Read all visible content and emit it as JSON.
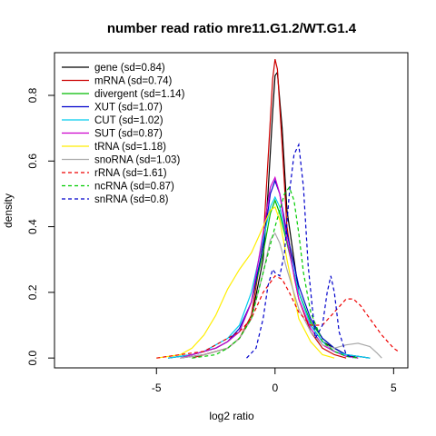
{
  "chart_data": {
    "type": "line",
    "title": "number read ratio mre11.G1.2/WT.G1.4",
    "xlabel": "log2 ratio",
    "ylabel": "density",
    "xlim": [
      -9.3,
      5.6
    ],
    "ylim": [
      -0.03,
      0.93
    ],
    "x_ticks": [
      -5,
      0,
      5
    ],
    "x_tick_labels": [
      "-5",
      "0",
      "5"
    ],
    "y_ticks": [
      0.0,
      0.2,
      0.4,
      0.6,
      0.8
    ],
    "y_tick_labels": [
      "0.0",
      "0.2",
      "0.4",
      "0.6",
      "0.8"
    ],
    "grid": false,
    "legend_position": "top-left",
    "series": [
      {
        "name": "gene (sd=0.84)",
        "color": "#000000",
        "dash": "solid",
        "x": [
          -4.0,
          -3.0,
          -2.5,
          -2.0,
          -1.5,
          -1.0,
          -0.5,
          -0.3,
          -0.1,
          0.0,
          0.1,
          0.3,
          0.5,
          0.8,
          1.0,
          1.5,
          2.0,
          2.5,
          3.0,
          3.5
        ],
        "y": [
          0.0,
          0.01,
          0.02,
          0.03,
          0.06,
          0.12,
          0.3,
          0.5,
          0.75,
          0.86,
          0.87,
          0.7,
          0.45,
          0.3,
          0.2,
          0.1,
          0.05,
          0.03,
          0.01,
          0.0
        ]
      },
      {
        "name": "mRNA (sd=0.74)",
        "color": "#cc0000",
        "dash": "solid",
        "x": [
          -3.5,
          -3.0,
          -2.5,
          -2.0,
          -1.5,
          -1.0,
          -0.5,
          -0.3,
          -0.1,
          0.0,
          0.1,
          0.3,
          0.5,
          0.8,
          1.0,
          1.5,
          2.0,
          2.5,
          3.0
        ],
        "y": [
          0.0,
          0.01,
          0.02,
          0.03,
          0.06,
          0.13,
          0.35,
          0.6,
          0.85,
          0.91,
          0.88,
          0.65,
          0.4,
          0.25,
          0.18,
          0.08,
          0.03,
          0.01,
          0.0
        ]
      },
      {
        "name": "divergent (sd=1.14)",
        "color": "#00bb00",
        "dash": "solid",
        "x": [
          -4.5,
          -3.5,
          -3.0,
          -2.5,
          -2.0,
          -1.5,
          -1.0,
          -0.5,
          -0.2,
          0.0,
          0.2,
          0.5,
          1.0,
          1.5,
          2.0,
          2.5,
          3.0,
          3.5,
          4.0
        ],
        "y": [
          0.0,
          0.01,
          0.02,
          0.03,
          0.05,
          0.08,
          0.17,
          0.32,
          0.44,
          0.48,
          0.44,
          0.35,
          0.2,
          0.11,
          0.06,
          0.03,
          0.01,
          0.005,
          0.0
        ]
      },
      {
        "name": "XUT (sd=1.07)",
        "color": "#0000cc",
        "dash": "solid",
        "x": [
          -4.5,
          -3.5,
          -3.0,
          -2.5,
          -2.0,
          -1.5,
          -1.0,
          -0.5,
          -0.2,
          0.0,
          0.2,
          0.5,
          1.0,
          1.5,
          2.0,
          2.5,
          3.0,
          3.5,
          4.0
        ],
        "y": [
          0.0,
          0.01,
          0.02,
          0.03,
          0.05,
          0.09,
          0.17,
          0.34,
          0.5,
          0.54,
          0.5,
          0.38,
          0.22,
          0.12,
          0.06,
          0.03,
          0.01,
          0.005,
          0.0
        ]
      },
      {
        "name": "CUT (sd=1.02)",
        "color": "#00ccee",
        "dash": "solid",
        "x": [
          -4.5,
          -3.5,
          -3.0,
          -2.5,
          -2.0,
          -1.5,
          -1.0,
          -0.5,
          -0.2,
          0.0,
          0.2,
          0.5,
          1.0,
          1.5,
          2.0,
          2.5,
          3.0,
          3.5,
          4.0
        ],
        "y": [
          0.0,
          0.01,
          0.02,
          0.04,
          0.06,
          0.1,
          0.2,
          0.36,
          0.46,
          0.49,
          0.46,
          0.36,
          0.2,
          0.1,
          0.05,
          0.02,
          0.01,
          0.005,
          0.0
        ]
      },
      {
        "name": "SUT (sd=0.87)",
        "color": "#cc00cc",
        "dash": "solid",
        "x": [
          -4.0,
          -3.5,
          -3.0,
          -2.5,
          -2.0,
          -1.5,
          -1.0,
          -0.5,
          -0.2,
          0.0,
          0.2,
          0.5,
          1.0,
          1.5,
          2.0,
          2.5,
          3.0,
          3.5
        ],
        "y": [
          0.0,
          0.01,
          0.02,
          0.03,
          0.05,
          0.08,
          0.17,
          0.38,
          0.52,
          0.55,
          0.5,
          0.36,
          0.18,
          0.09,
          0.04,
          0.02,
          0.005,
          0.0
        ]
      },
      {
        "name": "tRNA (sd=1.18)",
        "color": "#ffee00",
        "dash": "solid",
        "x": [
          -5.0,
          -4.0,
          -3.5,
          -3.0,
          -2.5,
          -2.0,
          -1.5,
          -1.0,
          -0.5,
          -0.2,
          0.0,
          0.2,
          0.5,
          1.0,
          1.5,
          2.0,
          2.5
        ],
        "y": [
          0.0,
          0.01,
          0.03,
          0.07,
          0.13,
          0.21,
          0.27,
          0.32,
          0.4,
          0.45,
          0.46,
          0.42,
          0.3,
          0.12,
          0.05,
          0.01,
          0.0
        ]
      },
      {
        "name": "snoRNA (sd=1.03)",
        "color": "#aaaaaa",
        "dash": "solid",
        "x": [
          -4.0,
          -3.0,
          -2.0,
          -1.5,
          -1.0,
          -0.5,
          -0.2,
          0.0,
          0.2,
          0.5,
          1.0,
          1.5,
          2.0,
          2.5,
          3.0,
          3.5,
          4.0,
          4.3,
          4.5
        ],
        "y": [
          0.0,
          0.01,
          0.03,
          0.06,
          0.12,
          0.26,
          0.36,
          0.38,
          0.35,
          0.27,
          0.15,
          0.08,
          0.04,
          0.03,
          0.04,
          0.045,
          0.035,
          0.015,
          0.0
        ]
      },
      {
        "name": "rRNA (sd=1.61)",
        "color": "#ee0000",
        "dash": "dashed",
        "x": [
          -5.0,
          -4.0,
          -3.0,
          -2.5,
          -2.0,
          -1.5,
          -1.0,
          -0.5,
          0.0,
          0.3,
          0.6,
          1.0,
          1.5,
          2.0,
          2.5,
          3.0,
          3.3,
          3.6,
          4.0,
          4.5,
          5.0,
          5.2
        ],
        "y": [
          0.0,
          0.01,
          0.02,
          0.04,
          0.06,
          0.08,
          0.12,
          0.2,
          0.25,
          0.24,
          0.2,
          0.14,
          0.1,
          0.1,
          0.14,
          0.18,
          0.18,
          0.16,
          0.12,
          0.07,
          0.03,
          0.02
        ]
      },
      {
        "name": "ncRNA (sd=0.87)",
        "color": "#00cc00",
        "dash": "dashed",
        "x": [
          -3.5,
          -2.5,
          -2.0,
          -1.5,
          -1.0,
          -0.5,
          0.0,
          0.2,
          0.4,
          0.6,
          0.8,
          1.0,
          1.2,
          1.5,
          2.0,
          2.5,
          3.0,
          3.5
        ],
        "y": [
          0.0,
          0.01,
          0.03,
          0.06,
          0.12,
          0.26,
          0.4,
          0.45,
          0.5,
          0.52,
          0.48,
          0.38,
          0.26,
          0.14,
          0.05,
          0.02,
          0.005,
          0.0
        ]
      },
      {
        "name": "snRNA (sd=0.8)",
        "color": "#0000cc",
        "dash": "dashed",
        "x": [
          -1.2,
          -0.8,
          -0.5,
          -0.3,
          -0.1,
          0.0,
          0.2,
          0.4,
          0.6,
          0.8,
          1.0,
          1.2,
          1.4,
          1.7,
          2.0,
          2.2,
          2.35,
          2.5,
          2.7,
          3.0,
          3.3
        ],
        "y": [
          0.0,
          0.03,
          0.12,
          0.22,
          0.27,
          0.26,
          0.25,
          0.32,
          0.5,
          0.62,
          0.65,
          0.52,
          0.28,
          0.06,
          0.1,
          0.2,
          0.25,
          0.2,
          0.08,
          0.01,
          0.0
        ]
      }
    ]
  }
}
